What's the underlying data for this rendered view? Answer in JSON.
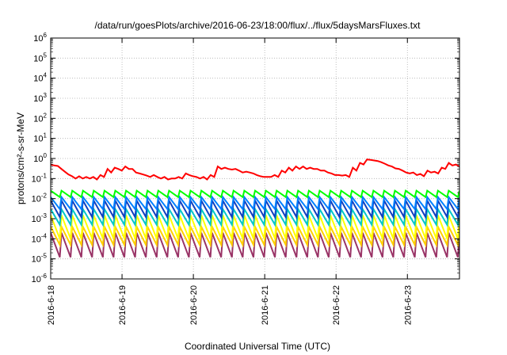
{
  "chart_data": {
    "type": "line",
    "title": "/data/run/goesPlots/archive/2016-06-23/18:00/flux/../flux/5daysMarsFluxes.txt",
    "xlabel": "Coordinated Universal Time (UTC)",
    "ylabel": "protons/cm²-s-sr-MeV",
    "x_ticks": [
      "2016-6-18",
      "2016-6-19",
      "2016-6-20",
      "2016-6-21",
      "2016-6-22",
      "2016-6-23"
    ],
    "xlim_days": [
      0,
      5.73
    ],
    "y_scale": "log",
    "ylim": [
      1e-06,
      1000000.0
    ],
    "y_tick_exponents": [
      -6,
      -5,
      -4,
      -3,
      -2,
      -1,
      0,
      1,
      2,
      3,
      4,
      5,
      6
    ],
    "grid": true,
    "legend": "none",
    "series": [
      {
        "color": "#ff0000",
        "values": [
          0.5,
          0.45,
          0.42,
          0.3,
          0.22,
          0.16,
          0.13,
          0.1,
          0.13,
          0.1,
          0.12,
          0.1,
          0.12,
          0.09,
          0.15,
          0.12,
          0.3,
          0.2,
          0.35,
          0.3,
          0.25,
          0.4,
          0.3,
          0.3,
          0.2,
          0.18,
          0.16,
          0.14,
          0.12,
          0.15,
          0.12,
          0.1,
          0.12,
          0.09,
          0.1,
          0.1,
          0.12,
          0.1,
          0.18,
          0.15,
          0.13,
          0.12,
          0.1,
          0.12,
          0.09,
          0.15,
          0.12,
          0.4,
          0.3,
          0.35,
          0.3,
          0.28,
          0.3,
          0.25,
          0.2,
          0.22,
          0.2,
          0.18,
          0.15,
          0.13,
          0.12,
          0.12,
          0.12,
          0.15,
          0.12,
          0.25,
          0.2,
          0.35,
          0.25,
          0.4,
          0.3,
          0.4,
          0.3,
          0.35,
          0.3,
          0.3,
          0.25,
          0.25,
          0.2,
          0.18,
          0.15,
          0.15,
          0.14,
          0.15,
          0.12,
          0.35,
          0.25,
          0.6,
          0.5,
          0.9,
          0.85,
          0.8,
          0.75,
          0.65,
          0.55,
          0.45,
          0.4,
          0.32,
          0.3,
          0.25,
          0.2,
          0.18,
          0.2,
          0.15,
          0.17,
          0.13,
          0.25,
          0.2,
          0.22,
          0.18,
          0.35,
          0.3,
          0.6,
          0.45,
          0.5,
          0.4
        ]
      },
      {
        "color": "#00ff00",
        "peak": 0.025,
        "trough": 0.012
      },
      {
        "color": "#0080ff",
        "peak": 0.012,
        "trough": 0.003
      },
      {
        "color": "#1040c0",
        "peak": 0.008,
        "trough": 0.0012
      },
      {
        "color": "#00c8c8",
        "peak": 0.003,
        "trough": 0.0005
      },
      {
        "color": "#ffff00",
        "peak": 0.0015,
        "trough": 0.0001
      },
      {
        "color": "#ffd000",
        "peak": 0.0004,
        "trough": 5e-05
      },
      {
        "color": "#993366",
        "peak": 0.0002,
        "trough": 1.2e-05
      }
    ],
    "sawtooth_cycles": 38
  }
}
